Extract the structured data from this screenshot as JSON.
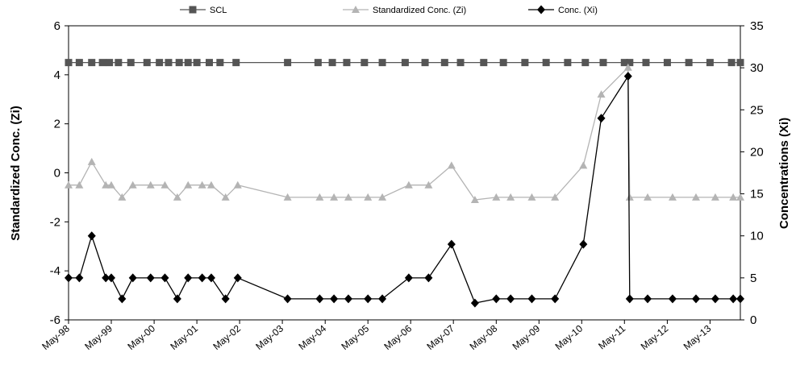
{
  "chart_data": {
    "type": "line",
    "x_axis": {
      "type": "date",
      "range": [
        "1998-05-01",
        "2014-01-15"
      ],
      "tick_labels": [
        "May-98",
        "May-99",
        "May-00",
        "May-01",
        "May-02",
        "May-03",
        "May-04",
        "May-05",
        "May-06",
        "May-07",
        "May-08",
        "May-09",
        "May-10",
        "May-11",
        "May-12",
        "May-13"
      ],
      "tick_dates": [
        "1998-05-01",
        "1999-05-01",
        "2000-05-01",
        "2001-05-01",
        "2002-05-01",
        "2003-05-01",
        "2004-05-01",
        "2005-05-01",
        "2006-05-01",
        "2007-05-01",
        "2008-05-01",
        "2009-05-01",
        "2010-05-01",
        "2011-05-01",
        "2012-05-01",
        "2013-05-01"
      ]
    },
    "y_left": {
      "label": "Standardized Conc. (Zi)",
      "range": [
        -6,
        6
      ],
      "ticks": [
        "-6",
        "-4",
        "-2",
        "0",
        "2",
        "4",
        "6"
      ],
      "tick_values": [
        -6,
        -4,
        -2,
        0,
        2,
        4,
        6
      ]
    },
    "y_right": {
      "label": "Concentrations (Xi)",
      "range": [
        0,
        35
      ],
      "ticks": [
        "0",
        "5",
        "10",
        "15",
        "20",
        "25",
        "30",
        "35"
      ],
      "tick_values": [
        0,
        5,
        10,
        15,
        20,
        25,
        30,
        35
      ]
    },
    "legend": {
      "position": "top",
      "entries": [
        "SCL",
        "Standardized Conc. (Zi)",
        "Conc. (Xi)"
      ]
    },
    "series": [
      {
        "name": "SCL",
        "axis": "left",
        "color": "#555555",
        "marker": "square",
        "x": [
          "1998-05-01",
          "1998-08-01",
          "1998-11-15",
          "1999-02-15",
          "1999-04-15",
          "1999-07-01",
          "1999-10-15",
          "2000-03-01",
          "2000-06-15",
          "2000-09-01",
          "2000-12-01",
          "2001-02-15",
          "2001-05-01",
          "2001-08-15",
          "2001-11-15",
          "2002-04-01",
          "2003-06-15",
          "2004-03-01",
          "2004-07-01",
          "2004-11-01",
          "2005-04-01",
          "2005-09-01",
          "2006-03-15",
          "2006-09-01",
          "2007-02-15",
          "2007-07-01",
          "2008-01-15",
          "2008-07-01",
          "2009-01-01",
          "2009-07-01",
          "2010-01-01",
          "2010-06-01",
          "2010-11-01",
          "2011-05-01",
          "2011-06-15",
          "2011-11-01",
          "2012-05-01",
          "2012-11-01",
          "2013-05-01",
          "2013-11-01",
          "2014-01-15"
        ],
        "y": [
          4.5,
          4.5,
          4.5,
          4.5,
          4.5,
          4.5,
          4.5,
          4.5,
          4.5,
          4.5,
          4.5,
          4.5,
          4.5,
          4.5,
          4.5,
          4.5,
          4.5,
          4.5,
          4.5,
          4.5,
          4.5,
          4.5,
          4.5,
          4.5,
          4.5,
          4.5,
          4.5,
          4.5,
          4.5,
          4.5,
          4.5,
          4.5,
          4.5,
          4.5,
          4.5,
          4.5,
          4.5,
          4.5,
          4.5,
          4.5,
          4.5
        ]
      },
      {
        "name": "Standardized Conc. (Zi)",
        "axis": "left",
        "color": "#b4b4b4",
        "marker": "triangle",
        "x": [
          "1998-05-01",
          "1998-08-01",
          "1998-11-15",
          "1999-03-15",
          "1999-05-01",
          "1999-08-01",
          "1999-11-01",
          "2000-04-01",
          "2000-08-01",
          "2000-11-15",
          "2001-02-15",
          "2001-06-15",
          "2001-09-01",
          "2002-01-01",
          "2002-04-15",
          "2003-06-15",
          "2004-03-15",
          "2004-07-15",
          "2004-11-15",
          "2005-05-01",
          "2005-09-01",
          "2006-04-15",
          "2006-10-01",
          "2007-04-15",
          "2007-11-01",
          "2008-05-01",
          "2008-09-01",
          "2009-03-01",
          "2009-09-15",
          "2010-05-15",
          "2010-10-15",
          "2011-06-01",
          "2011-06-15",
          "2011-11-15",
          "2012-06-15",
          "2013-01-01",
          "2013-06-15",
          "2013-11-15",
          "2014-01-15"
        ],
        "y": [
          -0.5,
          -0.5,
          0.45,
          -0.5,
          -0.5,
          -1.0,
          -0.5,
          -0.5,
          -0.5,
          -1.0,
          -0.5,
          -0.5,
          -0.5,
          -1.0,
          -0.5,
          -1.0,
          -1.0,
          -1.0,
          -1.0,
          -1.0,
          -1.0,
          -0.5,
          -0.5,
          0.3,
          -1.1,
          -1.0,
          -1.0,
          -1.0,
          -1.0,
          0.3,
          3.2,
          4.3,
          -1.0,
          -1.0,
          -1.0,
          -1.0,
          -1.0,
          -1.0,
          -1.0
        ]
      },
      {
        "name": "Conc. (Xi)",
        "axis": "right",
        "color": "#000000",
        "marker": "diamond",
        "x": [
          "1998-05-01",
          "1998-08-01",
          "1998-11-15",
          "1999-03-15",
          "1999-05-01",
          "1999-08-01",
          "1999-11-01",
          "2000-04-01",
          "2000-08-01",
          "2000-11-15",
          "2001-02-15",
          "2001-06-15",
          "2001-09-01",
          "2002-01-01",
          "2002-04-15",
          "2003-06-15",
          "2004-03-15",
          "2004-07-15",
          "2004-11-15",
          "2005-05-01",
          "2005-09-01",
          "2006-04-15",
          "2006-10-01",
          "2007-04-15",
          "2007-11-01",
          "2008-05-01",
          "2008-09-01",
          "2009-03-01",
          "2009-09-15",
          "2010-05-15",
          "2010-10-15",
          "2011-06-01",
          "2011-06-15",
          "2011-11-15",
          "2012-06-15",
          "2013-01-01",
          "2013-06-15",
          "2013-11-15",
          "2014-01-15"
        ],
        "y": [
          5.0,
          5.0,
          10.0,
          5.0,
          5.0,
          2.5,
          5.0,
          5.0,
          5.0,
          2.5,
          5.0,
          5.0,
          5.0,
          2.5,
          5.0,
          2.5,
          2.5,
          2.5,
          2.5,
          2.5,
          2.5,
          5.0,
          5.0,
          9.0,
          2.0,
          2.5,
          2.5,
          2.5,
          2.5,
          9.0,
          24.0,
          29.0,
          2.5,
          2.5,
          2.5,
          2.5,
          2.5,
          2.5,
          2.5
        ]
      }
    ]
  }
}
